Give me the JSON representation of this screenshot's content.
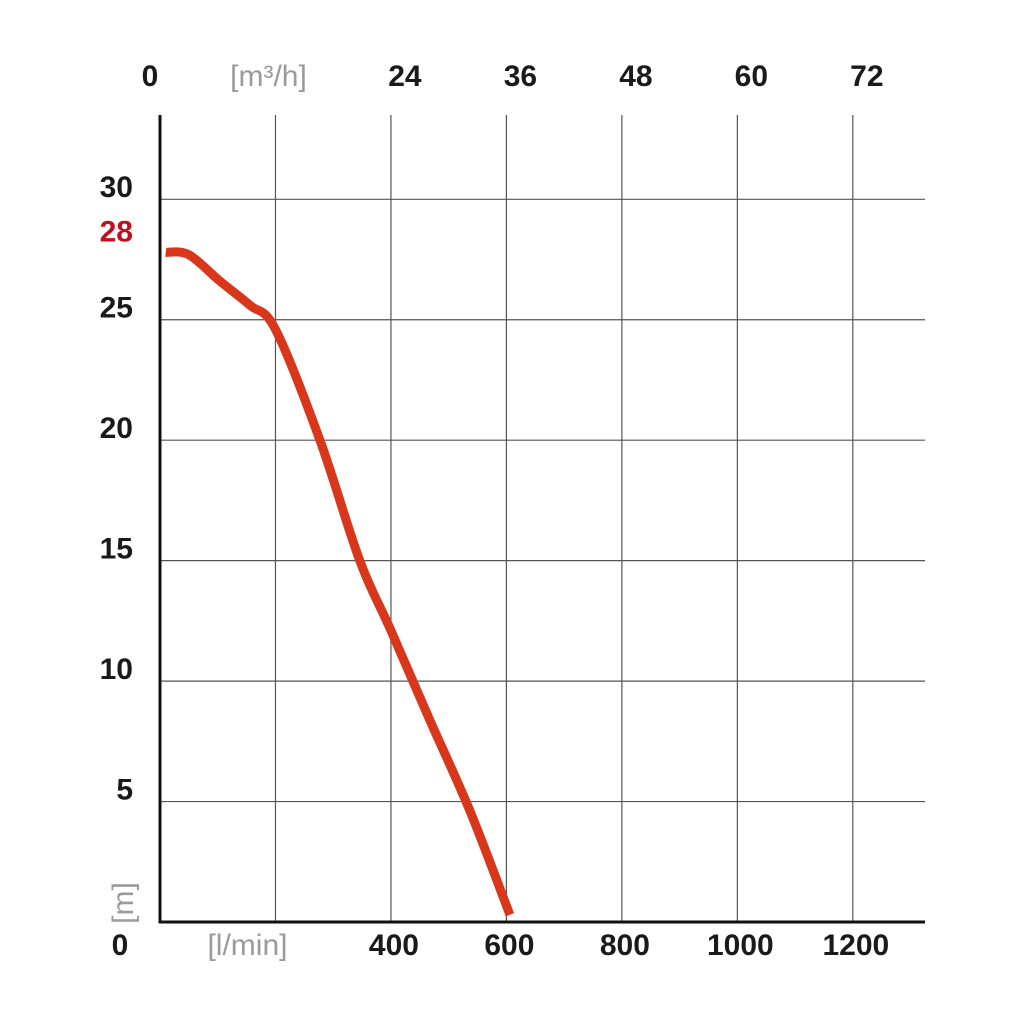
{
  "chart_data": {
    "type": "line",
    "x": [
      10,
      50,
      104,
      156,
      200,
      277,
      346,
      400,
      467,
      537,
      606
    ],
    "series": [
      {
        "color": "#d9371c",
        "values": [
          27.8,
          27.7,
          26.6,
          25.6,
          24.6,
          20,
          15,
          12.1,
          8.4,
          4.6,
          0.3
        ]
      }
    ],
    "xlim": [
      0,
      1325
    ],
    "xticks": [
      0,
      {
        "value": 200,
        "label": "[l/min]"
      },
      400,
      600,
      800,
      1000,
      1200
    ],
    "x2lim": [
      0,
      79.5
    ],
    "x2ticks": [
      0,
      {
        "value": 12,
        "label": "[m³/h]"
      },
      24,
      36,
      48,
      60,
      72
    ],
    "ylim": [
      0,
      33.5
    ],
    "yticks": [
      5,
      10,
      15,
      20,
      25,
      30
    ],
    "y_label": "[m]",
    "max_head": {
      "value": 28,
      "color": "#c0101c"
    },
    "grid": true
  }
}
